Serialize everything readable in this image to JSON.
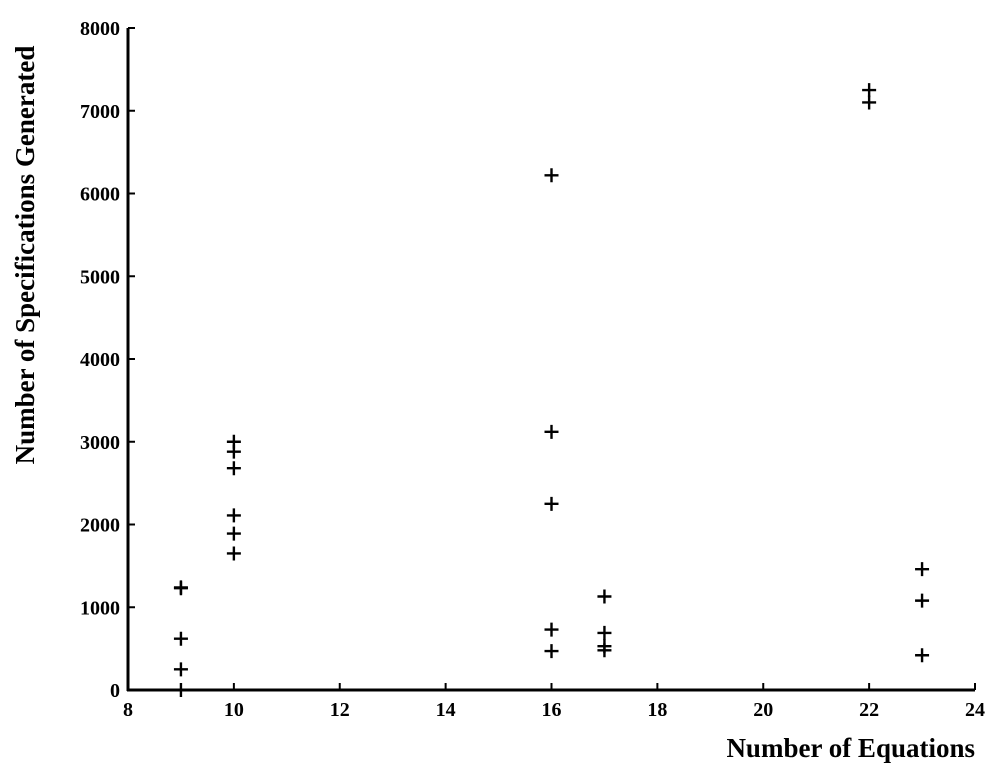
{
  "chart_data": {
    "type": "scatter",
    "title": "",
    "xlabel": "Number of Equations",
    "ylabel": "Number of Specifications Generated",
    "xlim": [
      8,
      24
    ],
    "ylim": [
      0,
      8000
    ],
    "xticks": [
      "8",
      "10",
      "12",
      "14",
      "16",
      "18",
      "20",
      "22",
      "24"
    ],
    "yticks": [
      "0",
      "1000",
      "2000",
      "3000",
      "4000",
      "5000",
      "6000",
      "7000",
      "8000"
    ],
    "grid": false,
    "legend": "none",
    "marker": "plus",
    "color": "#000000",
    "points": [
      {
        "x": 9,
        "y": 0
      },
      {
        "x": 9,
        "y": 250
      },
      {
        "x": 9,
        "y": 620
      },
      {
        "x": 9,
        "y": 1230
      },
      {
        "x": 9,
        "y": 1240
      },
      {
        "x": 10,
        "y": 1650
      },
      {
        "x": 10,
        "y": 1890
      },
      {
        "x": 10,
        "y": 2110
      },
      {
        "x": 10,
        "y": 2680
      },
      {
        "x": 10,
        "y": 2880
      },
      {
        "x": 10,
        "y": 3000
      },
      {
        "x": 16,
        "y": 470
      },
      {
        "x": 16,
        "y": 730
      },
      {
        "x": 16,
        "y": 2250
      },
      {
        "x": 16,
        "y": 3120
      },
      {
        "x": 16,
        "y": 6220
      },
      {
        "x": 17,
        "y": 480
      },
      {
        "x": 17,
        "y": 530
      },
      {
        "x": 17,
        "y": 690
      },
      {
        "x": 17,
        "y": 1130
      },
      {
        "x": 22,
        "y": 7100
      },
      {
        "x": 22,
        "y": 7250
      },
      {
        "x": 23,
        "y": 420
      },
      {
        "x": 23,
        "y": 1080
      },
      {
        "x": 23,
        "y": 1460
      }
    ]
  }
}
